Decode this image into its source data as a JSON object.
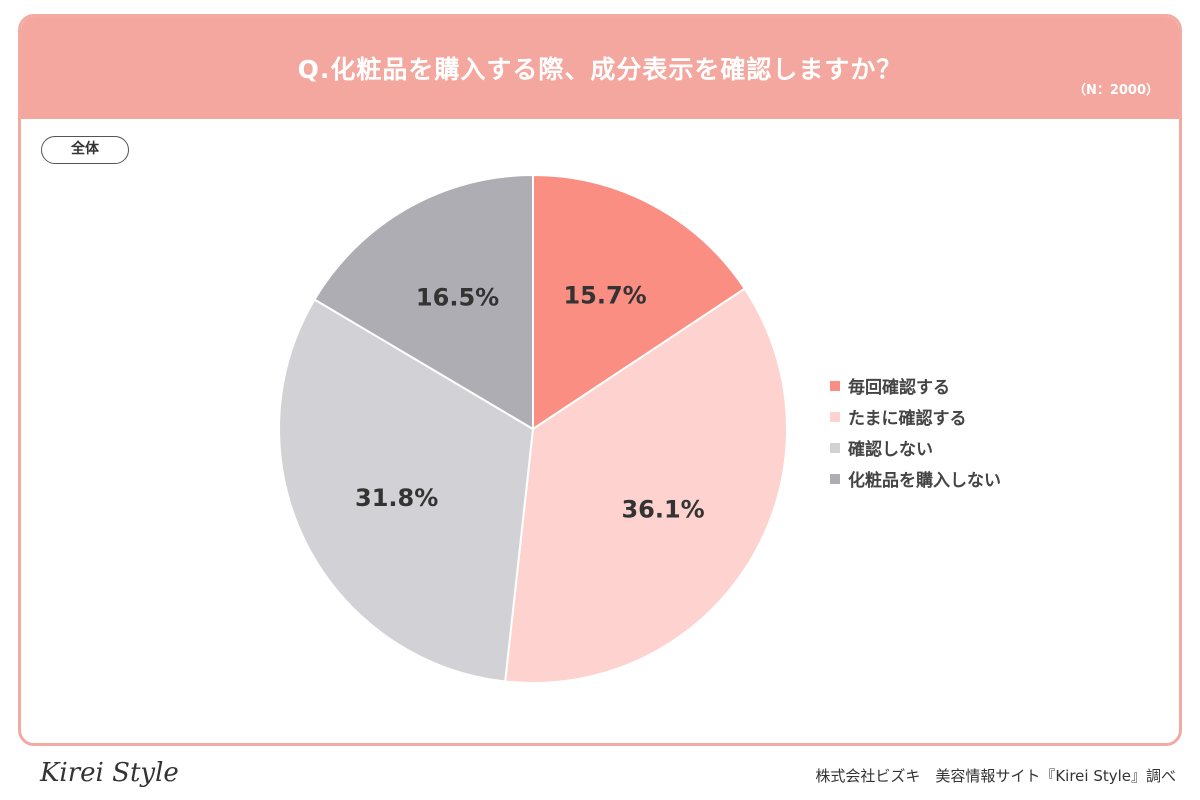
{
  "header": {
    "title": "Q.化粧品を購入する際、成分表示を確認しますか？",
    "sample": "（N：2000）"
  },
  "scope_label": "全体",
  "chart_data": {
    "type": "pie",
    "title": "Q.化粧品を購入する際、成分表示を確認しますか？",
    "legend_position": "right",
    "slices": [
      {
        "label": "毎回確認する",
        "value": 15.7,
        "display": "15.7%",
        "color": "#fa8e82"
      },
      {
        "label": "たまに確認する",
        "value": 36.1,
        "display": "36.1%",
        "color": "#fdd2cf"
      },
      {
        "label": "確認しない",
        "value": 31.8,
        "display": "31.8%",
        "color": "#d2d1d6"
      },
      {
        "label": "化粧品を購入しない",
        "value": 16.5,
        "display": "16.5%",
        "color": "#aeadb3"
      }
    ]
  },
  "footer": {
    "logo": "Kirei Style",
    "credit": "株式会社ビズキ　美容情報サイト『Kirei Style』調べ"
  }
}
